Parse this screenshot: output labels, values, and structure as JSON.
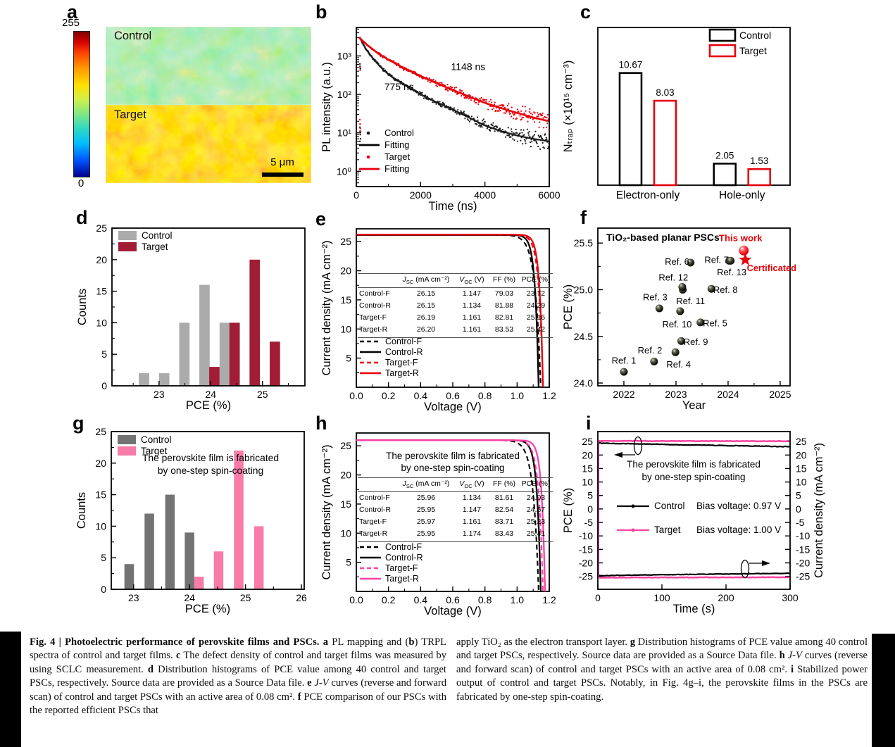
{
  "panels": {
    "a": {
      "letter": "a",
      "colorbar_top": "255",
      "colorbar_bottom": "0",
      "control_label": "Control",
      "target_label": "Target",
      "scalebar_label": "5 μm"
    },
    "b": {
      "letter": "b"
    },
    "c": {
      "letter": "c"
    },
    "d": {
      "letter": "d"
    },
    "e": {
      "letter": "e"
    },
    "f": {
      "letter": "f"
    },
    "g": {
      "letter": "g"
    },
    "h": {
      "letter": "h"
    },
    "i": {
      "letter": "i"
    }
  },
  "colors": {
    "red": "#e8000b",
    "dark_red": "#a11d35",
    "gray_light": "#ababab",
    "gray_dark": "#737373",
    "pink_bar": "#f87ba8",
    "pink_line": "#ff40a2"
  },
  "chart_data": {
    "b": {
      "type": "line",
      "xlabel": "Time (ns)",
      "ylabel": "PL intensity (a.u.)",
      "xlim": [
        0,
        6000
      ],
      "xticks": [
        0,
        2000,
        4000,
        6000
      ],
      "xminor": [
        1000,
        3000,
        5000
      ],
      "ylog": true,
      "ylim": [
        0.4,
        5500
      ],
      "yticks": [
        {
          "v": 1,
          "l": "10⁰"
        },
        {
          "v": 10,
          "l": "10¹"
        },
        {
          "v": 100,
          "l": "10²"
        },
        {
          "v": 1000,
          "l": "10³"
        }
      ],
      "series": [
        {
          "name": "Control",
          "fit_name": "Fitting",
          "color": "#1a1a1a",
          "lifetime": "775 ns",
          "anchors": [
            [
              100,
              3050
            ],
            [
              300,
              1500
            ],
            [
              500,
              900
            ],
            [
              750,
              520
            ],
            [
              1000,
              330
            ],
            [
              1500,
              175
            ],
            [
              2000,
              100
            ],
            [
              2500,
              62
            ],
            [
              3000,
              40
            ],
            [
              3500,
              25
            ],
            [
              4000,
              15.5
            ],
            [
              4500,
              11
            ],
            [
              5000,
              8.5
            ],
            [
              5500,
              7
            ],
            [
              6000,
              6
            ]
          ]
        },
        {
          "name": "Target",
          "fit_name": "Fitting",
          "color": "#e8000b",
          "lifetime": "1148 ns",
          "anchors": [
            [
              100,
              2950
            ],
            [
              300,
              2050
            ],
            [
              500,
              1500
            ],
            [
              750,
              1060
            ],
            [
              1000,
              800
            ],
            [
              1500,
              470
            ],
            [
              2000,
              300
            ],
            [
              2500,
              195
            ],
            [
              3000,
              130
            ],
            [
              3500,
              88
            ],
            [
              4000,
              60
            ],
            [
              4500,
              44
            ],
            [
              5000,
              33
            ],
            [
              5500,
              25
            ],
            [
              6000,
              20
            ]
          ]
        }
      ],
      "annotations": [
        {
          "text": "775 ns",
          "x": 1330,
          "y": 130
        },
        {
          "text": "1148 ns",
          "x": 3480,
          "y": 430
        }
      ],
      "legend": [
        {
          "marker": "dot",
          "color": "#1a1a1a",
          "label": "Control"
        },
        {
          "marker": "line",
          "color": "#000000",
          "label": "Fitting"
        },
        {
          "marker": "dot",
          "color": "#e8000b",
          "label": "Target"
        },
        {
          "marker": "line",
          "color": "#e8000b",
          "label": "Fitting"
        }
      ]
    },
    "c": {
      "type": "bar",
      "ylabel": "Nₜᵣₐₚ (×10¹⁵ cm⁻³)",
      "categories": [
        "Electron-only",
        "Hole-only"
      ],
      "series": [
        {
          "name": "Control",
          "color": "#000000",
          "values": [
            10.67,
            2.05
          ]
        },
        {
          "name": "Target",
          "color": "#e8000b",
          "values": [
            8.03,
            1.53
          ]
        }
      ],
      "ylim": [
        0,
        15
      ]
    },
    "d": {
      "type": "bar",
      "xlabel": "PCE (%)",
      "ylabel": "Counts",
      "xlim": [
        22.09,
        25.82
      ],
      "ylim": [
        0,
        25
      ],
      "xticks": [
        23,
        24,
        25
      ],
      "xminor": [
        22.5,
        23.5,
        24.5,
        25.5
      ],
      "yticks": [
        0,
        5,
        10,
        15,
        20,
        25
      ],
      "yminor": [
        2.5,
        7.5,
        12.5,
        17.5,
        22.5
      ],
      "bar_width": 0.2,
      "series": [
        {
          "name": "Control",
          "color": "#ababab",
          "bars": [
            [
              22.71,
              2
            ],
            [
              23.1,
              2
            ],
            [
              23.49,
              10
            ],
            [
              23.88,
              16
            ],
            [
              24.27,
              10
            ]
          ]
        },
        {
          "name": "Target",
          "color": "#a11d35",
          "bars": [
            [
              24.07,
              3
            ],
            [
              24.46,
              10
            ],
            [
              24.85,
              20
            ],
            [
              25.24,
              7
            ]
          ]
        }
      ]
    },
    "e": {
      "type": "line",
      "xlabel": "Voltage (V)",
      "ylabel": "Current density (mA cm⁻²)",
      "xlim": [
        0,
        1.2
      ],
      "ylim": [
        0,
        27.2
      ],
      "xticks": [
        {
          "v": 0,
          "l": "0.0"
        },
        {
          "v": 0.2,
          "l": "0.2"
        },
        {
          "v": 0.4,
          "l": "0.4"
        },
        {
          "v": 0.6,
          "l": "0.6"
        },
        {
          "v": 0.8,
          "l": "0.8"
        },
        {
          "v": 1,
          "l": "1.0"
        },
        {
          "v": 1.2,
          "l": "1.2"
        }
      ],
      "xminor": [
        0.1,
        0.3,
        0.5,
        0.7,
        0.9,
        1.1
      ],
      "yticks": [
        5,
        10,
        15,
        20,
        25
      ],
      "yminor": [
        2.5,
        7.5,
        12.5,
        17.5,
        22.5
      ],
      "curves": [
        {
          "name": "Control-F",
          "color": "#000000",
          "dash": true,
          "jsc": 26.15,
          "voc": 1.147,
          "knee": 0.034
        },
        {
          "name": "Control-R",
          "color": "#000000",
          "dash": false,
          "jsc": 26.15,
          "voc": 1.134,
          "knee": 0.022
        },
        {
          "name": "Target-F",
          "color": "#e8000b",
          "dash": true,
          "jsc": 26.19,
          "voc": 1.161,
          "knee": 0.025
        },
        {
          "name": "Target-R",
          "color": "#e8000b",
          "dash": false,
          "jsc": 26.2,
          "voc": 1.161,
          "knee": 0.021
        }
      ],
      "table": {
        "header": [
          {
            "pre": "J",
            "italic": true,
            "sub": "SC",
            "post": " (mA cm⁻²)"
          },
          {
            "pre": "V",
            "italic": true,
            "sub": "OC",
            "post": " (V)"
          },
          {
            "pre": "FF (%)"
          },
          {
            "pre": "PCE (%)"
          }
        ],
        "rows": [
          [
            "Control-F",
            "26.15",
            "1.147",
            "79.03",
            "23.72"
          ],
          [
            "Control-R",
            "26.15",
            "1.134",
            "81.88",
            "24.29"
          ],
          [
            "Target-F",
            "26.19",
            "1.161",
            "82.81",
            "25.16"
          ],
          [
            "Target-R",
            "26.20",
            "1.161",
            "83.53",
            "25.42"
          ]
        ]
      }
    },
    "f": {
      "type": "scatter",
      "title": "TiO₂-based planar PSCs",
      "xlabel": "Year",
      "ylabel": "PCE (%)",
      "xlim": [
        2021.5,
        2025.19
      ],
      "ylim": [
        23.97,
        25.66
      ],
      "xticks": [
        2022,
        2023,
        2024,
        2025
      ],
      "xminor": [
        2022.5,
        2023.5,
        2024.5
      ],
      "yticks": [
        {
          "v": 24,
          "l": "24.0"
        },
        {
          "v": 24.5,
          "l": "24.5"
        },
        {
          "v": 25,
          "l": "25.0"
        },
        {
          "v": 25.5,
          "l": "25.5"
        }
      ],
      "yminor": [
        24.25,
        24.75,
        25.25
      ],
      "points": [
        {
          "label": "Ref. 1",
          "x": 2022.0,
          "y": 24.12,
          "lx": 2022.0,
          "ly": 24.24
        },
        {
          "label": "Ref. 2",
          "x": 2022.58,
          "y": 24.23,
          "lx": 2022.5,
          "ly": 24.35
        },
        {
          "label": "Ref. 3",
          "x": 2022.68,
          "y": 24.8,
          "lx": 2022.6,
          "ly": 24.92
        },
        {
          "label": "Ref. 4",
          "x": 2022.99,
          "y": 24.33,
          "lx": 2023.05,
          "ly": 24.2
        },
        {
          "label": "Ref. 5",
          "x": 2023.47,
          "y": 24.65,
          "lx": 2023.75,
          "ly": 24.64
        },
        {
          "label": "Ref. 6",
          "x": 2023.28,
          "y": 25.29,
          "lx": 2023.02,
          "ly": 25.3
        },
        {
          "label": "Ref. 7",
          "x": 2024.02,
          "y": 25.31,
          "lx": 2023.78,
          "ly": 25.32
        },
        {
          "label": "Ref. 8",
          "x": 2023.68,
          "y": 25.01,
          "lx": 2023.95,
          "ly": 25.0
        },
        {
          "label": "Ref. 9",
          "x": 2023.1,
          "y": 24.45,
          "lx": 2023.38,
          "ly": 24.44
        },
        {
          "label": "Ref. 10",
          "x": 2023.08,
          "y": 24.77,
          "lx": 2023.02,
          "ly": 24.63
        },
        {
          "label": "Ref. 11",
          "x": 2023.13,
          "y": 25.0,
          "lx": 2023.28,
          "ly": 24.88
        },
        {
          "label": "Ref. 12",
          "x": 2023.12,
          "y": 25.03,
          "lx": 2022.95,
          "ly": 25.13
        },
        {
          "label": "Ref. 13",
          "x": 2024.05,
          "y": 25.31,
          "lx": 2024.07,
          "ly": 25.19
        }
      ],
      "highlight": {
        "x": 2024.3,
        "y": 25.42,
        "star_x": 2024.33,
        "star_y": 25.32,
        "label": "This work",
        "label_x": 2024.24,
        "label_y": 25.55,
        "label2": "Certificated",
        "label2_x": 2024.36,
        "label2_y": 25.23,
        "color": "#e8000b"
      }
    },
    "g": {
      "type": "bar",
      "xlabel": "PCE (%)",
      "ylabel": "Counts",
      "xlim": [
        22.6,
        26.05
      ],
      "ylim": [
        0,
        25
      ],
      "xticks": [
        23,
        24,
        25,
        26
      ],
      "xminor": [
        23.5,
        24.5,
        25.5
      ],
      "yticks": [
        0,
        5,
        10,
        15,
        20,
        25
      ],
      "yminor": [
        2.5,
        7.5,
        12.5,
        17.5,
        22.5
      ],
      "bar_width": 0.17,
      "annotation": [
        "The perovskite film is fabricated",
        "by one-step spin-coating"
      ],
      "series": [
        {
          "name": "Control",
          "color": "#737373",
          "bars": [
            [
              22.92,
              4
            ],
            [
              23.28,
              12
            ],
            [
              23.65,
              15
            ],
            [
              24.0,
              9
            ]
          ]
        },
        {
          "name": "Target",
          "color": "#f87ba8",
          "bars": [
            [
              24.17,
              2
            ],
            [
              24.52,
              6
            ],
            [
              24.88,
              22
            ],
            [
              25.24,
              10
            ]
          ]
        }
      ]
    },
    "h": {
      "type": "line",
      "xlabel": "Voltage (V)",
      "ylabel": "Current density (mA cm⁻²)",
      "xlim": [
        0,
        1.2
      ],
      "ylim": [
        0,
        27.2
      ],
      "xticks": [
        {
          "v": 0,
          "l": "0.0"
        },
        {
          "v": 0.2,
          "l": "0.2"
        },
        {
          "v": 0.4,
          "l": "0.4"
        },
        {
          "v": 0.6,
          "l": "0.6"
        },
        {
          "v": 0.8,
          "l": "0.8"
        },
        {
          "v": 1,
          "l": "1.0"
        },
        {
          "v": 1.2,
          "l": "1.2"
        }
      ],
      "xminor": [
        0.1,
        0.3,
        0.5,
        0.7,
        0.9,
        1.1
      ],
      "yticks": [
        5,
        10,
        15,
        20,
        25
      ],
      "yminor": [
        2.5,
        7.5,
        12.5,
        17.5,
        22.5
      ],
      "inset": [
        "The perovskite film is fabricated",
        "by one-step spin-coating"
      ],
      "curves": [
        {
          "name": "Control-F",
          "color": "#000000",
          "dash": true,
          "jsc": 25.96,
          "voc": 1.134,
          "knee": 0.033
        },
        {
          "name": "Control-R",
          "color": "#000000",
          "dash": false,
          "jsc": 25.95,
          "voc": 1.147,
          "knee": 0.023
        },
        {
          "name": "Target-F",
          "color": "#ff40a2",
          "dash": true,
          "jsc": 25.97,
          "voc": 1.161,
          "knee": 0.026
        },
        {
          "name": "Target-R",
          "color": "#ff40a2",
          "dash": false,
          "jsc": 25.95,
          "voc": 1.174,
          "knee": 0.021
        }
      ],
      "table": {
        "header": [
          {
            "pre": "J",
            "italic": true,
            "sub": "SC",
            "post": " (mA cm⁻²)"
          },
          {
            "pre": "V",
            "italic": true,
            "sub": "OC",
            "post": " (V)"
          },
          {
            "pre": "FF (%)"
          },
          {
            "pre": "PCE (%)"
          }
        ],
        "rows": [
          [
            "Control-F",
            "25.96",
            "1.134",
            "81.61",
            "24.03"
          ],
          [
            "Control-R",
            "25.95",
            "1.147",
            "82.54",
            "24.57"
          ],
          [
            "Target-F",
            "25.97",
            "1.161",
            "83.71",
            "25.23"
          ],
          [
            "Target-R",
            "25.95",
            "1.174",
            "83.43",
            "25.41"
          ]
        ]
      }
    },
    "i": {
      "type": "line",
      "xlabel": "Time (s)",
      "ylabel": "PCE (%)",
      "ylabel_right": "Current density (mA cm⁻²)",
      "xlim": [
        0,
        300
      ],
      "ylim": [
        -29.8,
        28.7
      ],
      "xticks": [
        0,
        100,
        200,
        300
      ],
      "yticks": [
        -25,
        -20,
        -15,
        -10,
        -5,
        0,
        5,
        10,
        15,
        20,
        25
      ],
      "annotation": [
        "The perovskite film is fabricated",
        "by one-step spin-coating"
      ],
      "series": [
        {
          "name": "Control",
          "bias": "Bias voltage: 0.97 V",
          "color": "#000000",
          "pce": [
            24.45,
            23.1
          ],
          "current": [
            -24.75,
            -23.85
          ]
        },
        {
          "name": "Target",
          "bias": "Bias voltage: 1.00 V",
          "color": "#ff40a2",
          "pce": [
            25.25,
            25.15
          ],
          "current": [
            -25.45,
            -25.35
          ]
        }
      ]
    }
  },
  "caption": {
    "left": [
      {
        "t": "Fig. 4 | Photoelectric performance of perovskite films and PSCs. ",
        "b": true
      },
      {
        "t": "a",
        "b": true
      },
      {
        "t": " PL mapping and ("
      },
      {
        "t": "b",
        "b": true
      },
      {
        "t": ") TRPL spectra of control and target films. "
      },
      {
        "t": "c",
        "b": true
      },
      {
        "t": " The defect density of control and target films was measured by using SCLC measurement. "
      },
      {
        "t": "d",
        "b": true
      },
      {
        "t": " Distribution histograms of PCE value among 40 control and target PSCs, respectively. Source data are provided as a Source Data file. "
      },
      {
        "t": "e",
        "b": true
      },
      {
        "t": " "
      },
      {
        "t": "J-V",
        "i": true
      },
      {
        "t": " curves (reverse and forward scan) of control and target PSCs with an active area of 0.08 cm². "
      },
      {
        "t": "f",
        "b": true
      },
      {
        "t": " PCE comparison of our PSCs with the reported efficient PSCs that"
      }
    ],
    "right": [
      {
        "t": "apply TiO₂ as the electron transport layer. "
      },
      {
        "t": "g",
        "b": true
      },
      {
        "t": " Distribution histograms of PCE value among 40 control and target PSCs, respectively. Source data are provided as a Source Data file. "
      },
      {
        "t": "h",
        "b": true
      },
      {
        "t": " "
      },
      {
        "t": "J-V",
        "i": true
      },
      {
        "t": " curves (reverse and forward scan) of control and target PSCs with an active area of 0.08 cm². "
      },
      {
        "t": "i",
        "b": true
      },
      {
        "t": " Stabilized power output of control and target PSCs. Notably, in Fig. 4g–i, the perovskite films in the PSCs are fabricated by one-step spin-coating."
      }
    ]
  }
}
